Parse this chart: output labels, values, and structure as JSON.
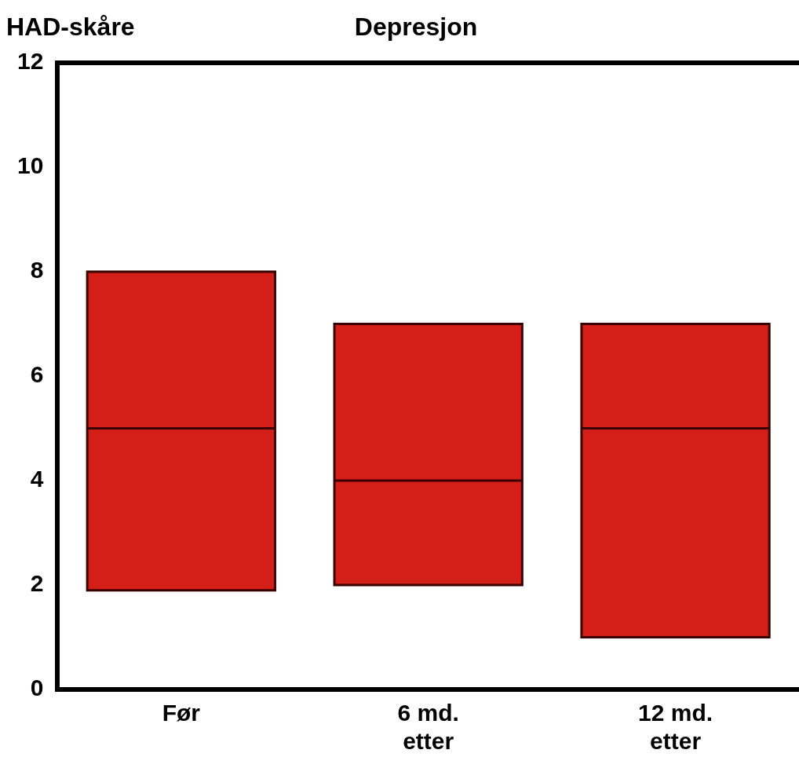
{
  "chart_data": {
    "type": "box",
    "title": "Depresjon",
    "ylabel": "HAD-skåre",
    "categories": [
      "Før",
      "6 md. etter",
      "12 md. etter"
    ],
    "color": "#d31f17",
    "boxes": [
      {
        "low": 1.9,
        "q1": 1.9,
        "median": 5,
        "q3": 8,
        "high": 8
      },
      {
        "low": 2,
        "q1": 2,
        "median": 4,
        "q3": 7,
        "high": 7
      },
      {
        "low": 1,
        "q1": 1,
        "median": 5,
        "q3": 7,
        "high": 7
      }
    ],
    "ylim": [
      0,
      12
    ],
    "yticks": [
      0,
      2,
      4,
      6,
      8,
      10,
      12
    ],
    "grid": false,
    "legend": false
  }
}
